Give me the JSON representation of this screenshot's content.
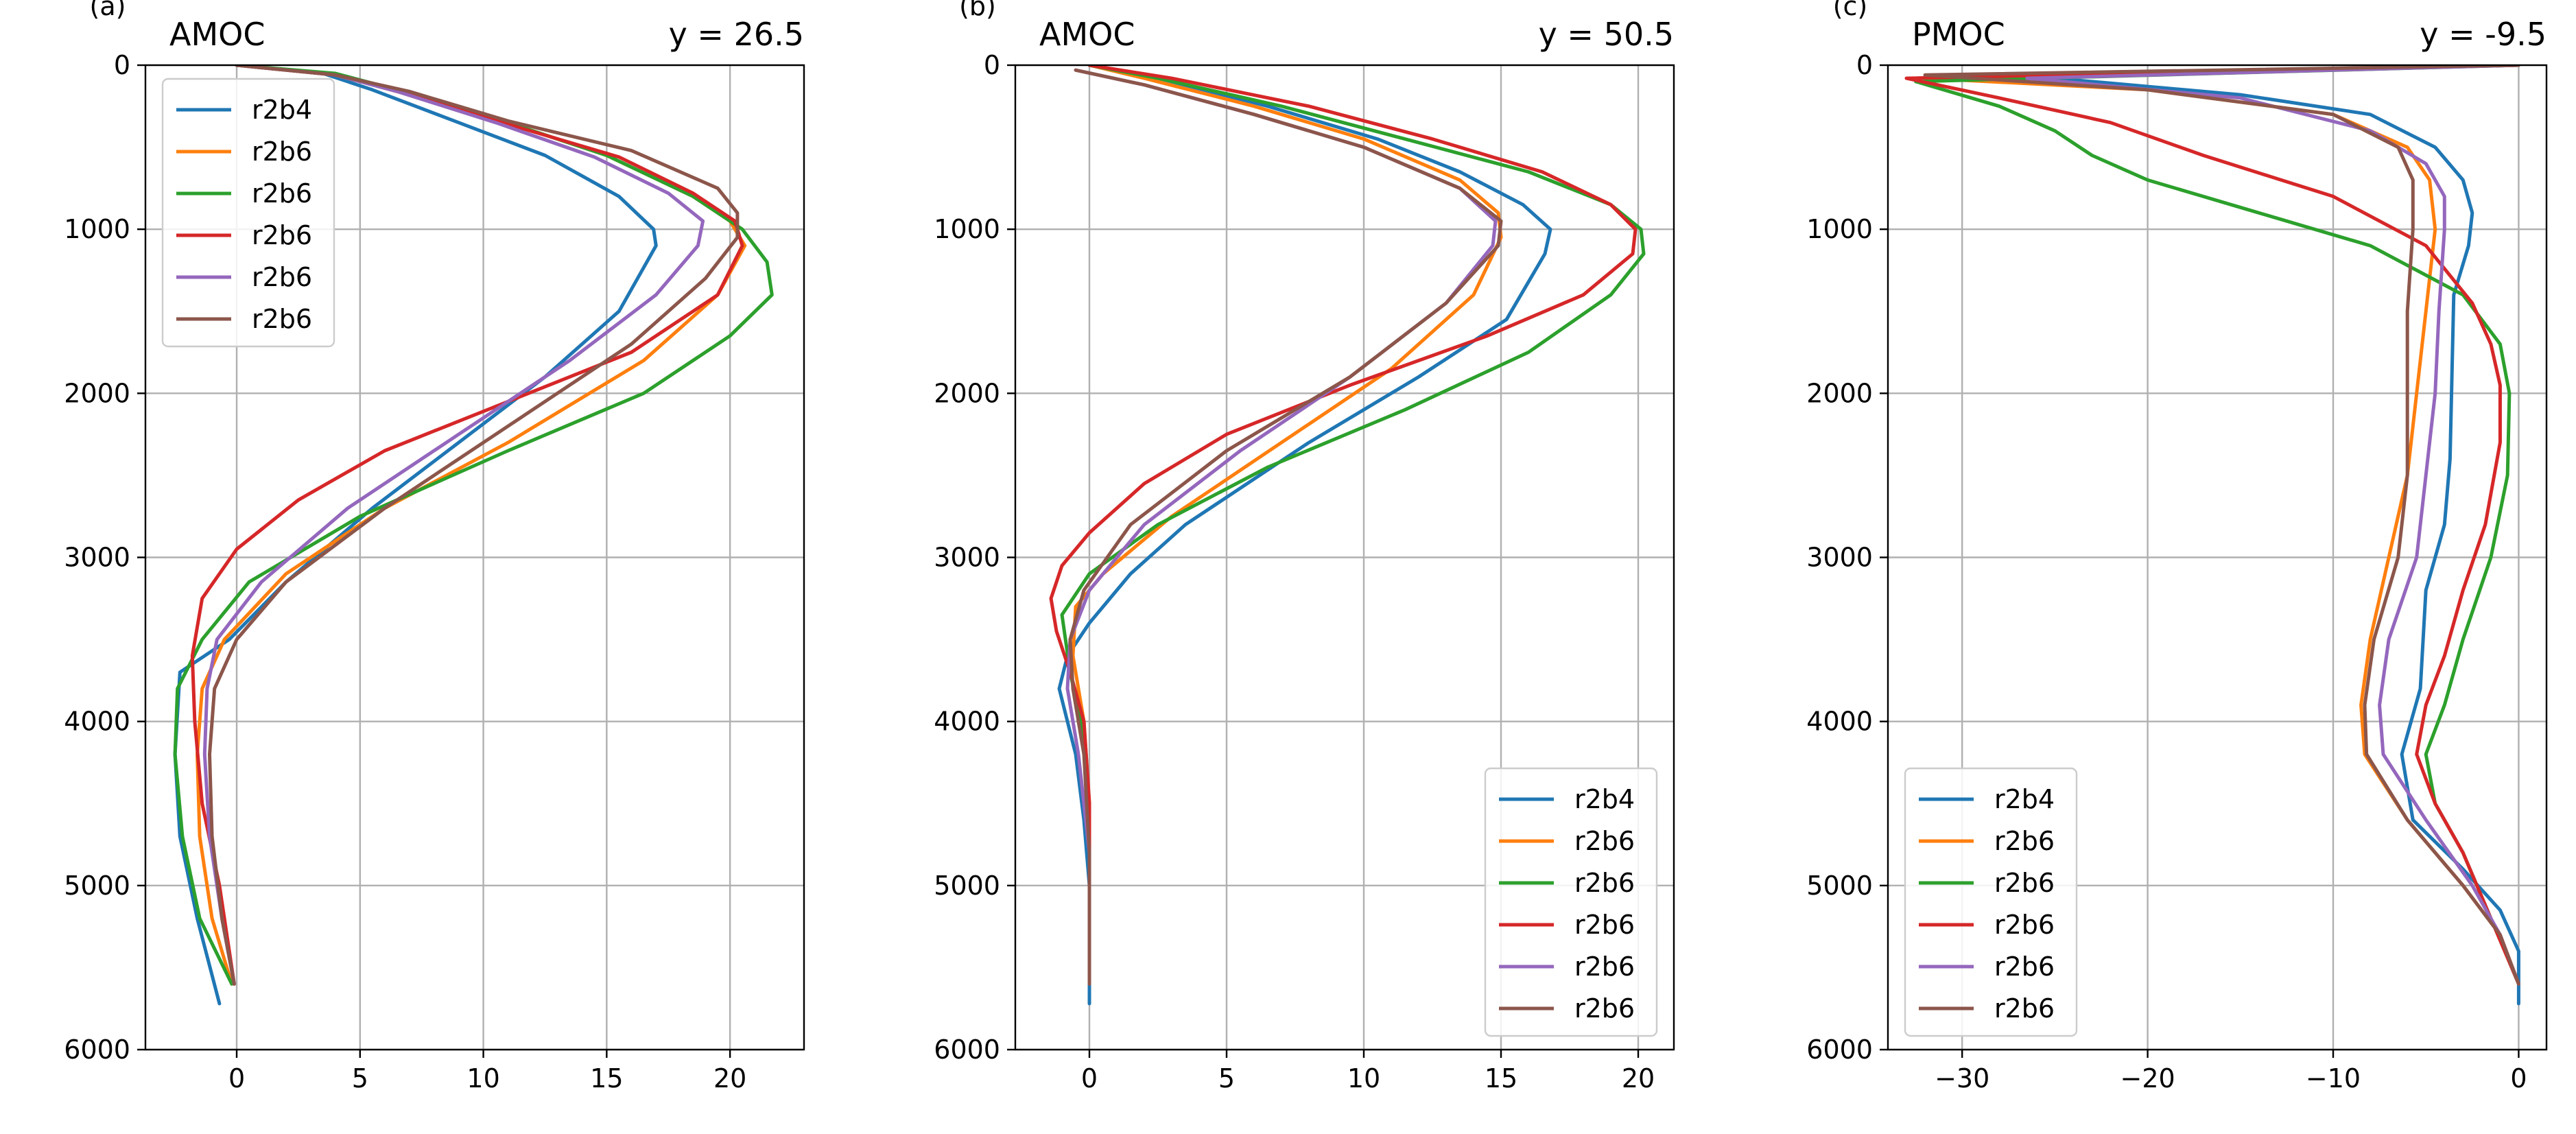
{
  "chart_data": [
    {
      "type": "line",
      "panel_letter": "(a)",
      "title": "AMOC",
      "title_right": "y = 26.5",
      "xlim": [
        -3.7,
        23
      ],
      "ylim": [
        6000,
        0
      ],
      "xticks": [
        0,
        5,
        10,
        15,
        20
      ],
      "xtick_labels": [
        "0",
        "5",
        "10",
        "15",
        "20"
      ],
      "yticks": [
        0,
        1000,
        2000,
        3000,
        4000,
        5000,
        6000
      ],
      "ytick_labels": [
        "0",
        "1000",
        "2000",
        "3000",
        "4000",
        "5000",
        "6000"
      ],
      "grid": true,
      "legend_position": "upper-left",
      "series": [
        {
          "name": "r2b4",
          "color": "#1f77b4",
          "x": [
            0,
            3.5,
            5.5,
            9,
            12.5,
            15.5,
            16.9,
            17,
            15.5,
            12.5,
            9,
            5.5,
            2,
            -0.3,
            -2.3,
            -2.5,
            -2.3,
            -1.6,
            -0.7
          ],
          "y": [
            0,
            50,
            150,
            350,
            550,
            800,
            1000,
            1100,
            1500,
            1900,
            2300,
            2700,
            3150,
            3500,
            3700,
            4200,
            4700,
            5200,
            5720
          ]
        },
        {
          "name": "r2b6",
          "color": "#ff7f0e",
          "x": [
            0,
            4,
            6.5,
            11,
            15,
            18.5,
            20,
            20.6,
            19.5,
            16.5,
            11,
            6,
            2,
            -0.5,
            -1.4,
            -1.6,
            -1.5,
            -1,
            -0.2
          ],
          "y": [
            0,
            60,
            160,
            350,
            550,
            800,
            950,
            1100,
            1400,
            1800,
            2300,
            2700,
            3100,
            3500,
            3800,
            4200,
            4700,
            5200,
            5600
          ]
        },
        {
          "name": "r2b6",
          "color": "#2ca02c",
          "x": [
            0,
            4,
            6.5,
            11,
            15,
            18.5,
            20.5,
            21.5,
            21.7,
            20,
            16.5,
            11,
            5,
            0.5,
            -1.4,
            -2.4,
            -2.5,
            -2.2,
            -1.5,
            -0.2
          ],
          "y": [
            0,
            50,
            150,
            350,
            550,
            800,
            1000,
            1200,
            1400,
            1650,
            2000,
            2350,
            2750,
            3150,
            3500,
            3800,
            4200,
            4700,
            5200,
            5600
          ]
        },
        {
          "name": "r2b6",
          "color": "#d62728",
          "x": [
            0,
            4,
            7,
            11,
            15.5,
            18.5,
            20.2,
            20.5,
            19.5,
            16,
            11,
            6,
            2.5,
            0,
            -1.4,
            -1.8,
            -1.7,
            -1.4,
            -0.7,
            -0.1
          ],
          "y": [
            0,
            60,
            170,
            360,
            560,
            780,
            950,
            1100,
            1400,
            1750,
            2050,
            2350,
            2650,
            2950,
            3250,
            3600,
            4000,
            4500,
            5000,
            5600
          ]
        },
        {
          "name": "r2b6",
          "color": "#9467bd",
          "x": [
            0,
            4,
            6.5,
            10.5,
            14.5,
            17.5,
            18.9,
            18.7,
            17,
            13.5,
            9,
            4.5,
            1,
            -0.8,
            -1.2,
            -1.3,
            -1.1,
            -0.6,
            -0.1
          ],
          "y": [
            0,
            60,
            160,
            350,
            560,
            780,
            950,
            1100,
            1400,
            1800,
            2250,
            2700,
            3150,
            3500,
            3800,
            4200,
            4700,
            5200,
            5600
          ]
        },
        {
          "name": "r2b6",
          "color": "#8c564b",
          "x": [
            0,
            4,
            7,
            11,
            16,
            19.5,
            20.3,
            20.3,
            19,
            16,
            11,
            6,
            2,
            0,
            -0.9,
            -1.1,
            -1,
            -0.6,
            -0.1
          ],
          "y": [
            0,
            60,
            160,
            340,
            520,
            750,
            900,
            1050,
            1300,
            1700,
            2200,
            2700,
            3150,
            3500,
            3800,
            4200,
            4700,
            5200,
            5600
          ]
        }
      ]
    },
    {
      "type": "line",
      "panel_letter": "(b)",
      "title": "AMOC",
      "title_right": "y = 50.5",
      "xlim": [
        -2.7,
        21.3
      ],
      "ylim": [
        6000,
        0
      ],
      "xticks": [
        0,
        5,
        10,
        15,
        20
      ],
      "xtick_labels": [
        "0",
        "5",
        "10",
        "15",
        "20"
      ],
      "yticks": [
        0,
        1000,
        2000,
        3000,
        4000,
        5000,
        6000
      ],
      "ytick_labels": [
        "0",
        "1000",
        "2000",
        "3000",
        "4000",
        "5000",
        "6000"
      ],
      "grid": true,
      "legend_position": "lower-right",
      "series": [
        {
          "name": "r2b4",
          "color": "#1f77b4",
          "x": [
            0,
            2.5,
            6.5,
            10.5,
            13.5,
            15.8,
            16.8,
            16.6,
            15.2,
            12,
            8,
            3.5,
            1.5,
            0,
            -0.8,
            -1.1,
            -0.5,
            -0.2,
            0,
            0,
            0
          ],
          "y": [
            0,
            80,
            250,
            450,
            650,
            850,
            1000,
            1150,
            1550,
            1900,
            2300,
            2800,
            3100,
            3400,
            3600,
            3800,
            4200,
            4600,
            5000,
            5400,
            5720
          ]
        },
        {
          "name": "r2b6",
          "color": "#ff7f0e",
          "x": [
            0,
            2,
            6,
            10,
            13.5,
            14.9,
            15,
            14,
            11,
            7,
            3,
            0.5,
            -0.5,
            -0.6,
            -0.2,
            0,
            0,
            0
          ],
          "y": [
            0,
            80,
            250,
            450,
            700,
            900,
            1050,
            1400,
            1850,
            2300,
            2750,
            3100,
            3300,
            3600,
            4000,
            4500,
            5000,
            5600
          ]
        },
        {
          "name": "r2b6",
          "color": "#2ca02c",
          "x": [
            0,
            2.5,
            7,
            11.5,
            16,
            19,
            20.1,
            20.2,
            19,
            16,
            11.5,
            6.5,
            2.5,
            0,
            -1,
            -0.7,
            -0.2,
            0,
            0
          ],
          "y": [
            0,
            80,
            250,
            450,
            650,
            850,
            1000,
            1150,
            1400,
            1750,
            2100,
            2450,
            2800,
            3100,
            3350,
            3700,
            4100,
            4600,
            5600
          ]
        },
        {
          "name": "r2b6",
          "color": "#d62728",
          "x": [
            0,
            3,
            8,
            12.5,
            16.5,
            19,
            19.9,
            19.8,
            18,
            14.5,
            9.5,
            5,
            2,
            0,
            -1,
            -1.4,
            -1.2,
            -0.7,
            -0.2,
            0,
            0
          ],
          "y": [
            0,
            80,
            250,
            450,
            650,
            850,
            1000,
            1150,
            1400,
            1650,
            1950,
            2250,
            2550,
            2850,
            3050,
            3250,
            3450,
            3700,
            4000,
            4500,
            5600
          ]
        },
        {
          "name": "r2b6",
          "color": "#9467bd",
          "x": [
            -0.5,
            2,
            6,
            10,
            13.5,
            14.8,
            14.7,
            13,
            9.5,
            5.5,
            2,
            0,
            -0.7,
            -0.8,
            -0.4,
            0,
            0
          ],
          "y": [
            30,
            120,
            300,
            500,
            750,
            950,
            1100,
            1450,
            1900,
            2350,
            2800,
            3200,
            3500,
            3800,
            4200,
            4800,
            5600
          ]
        },
        {
          "name": "r2b6",
          "color": "#8c564b",
          "x": [
            -0.5,
            2,
            6,
            10,
            13.5,
            15,
            14.9,
            13,
            9.5,
            5,
            1.5,
            -0.2,
            -0.7,
            -0.6,
            -0.2,
            0,
            0
          ],
          "y": [
            30,
            120,
            300,
            500,
            750,
            950,
            1100,
            1450,
            1900,
            2350,
            2800,
            3200,
            3500,
            3800,
            4200,
            4800,
            5600
          ]
        }
      ]
    },
    {
      "type": "line",
      "panel_letter": "(c)",
      "title": "PMOC",
      "title_right": "y = -9.5",
      "xlim": [
        -34,
        1.5
      ],
      "ylim": [
        6000,
        0
      ],
      "xticks": [
        -30,
        -20,
        -10,
        0
      ],
      "xtick_labels": [
        "−30",
        "−20",
        "−10",
        "0"
      ],
      "yticks": [
        0,
        1000,
        2000,
        3000,
        4000,
        5000,
        6000
      ],
      "ytick_labels": [
        "0",
        "1000",
        "2000",
        "3000",
        "4000",
        "5000",
        "6000"
      ],
      "grid": true,
      "legend_position": "lower-left",
      "series": [
        {
          "name": "r2b4",
          "color": "#1f77b4",
          "x": [
            0,
            -26,
            -22,
            -15,
            -8,
            -4.5,
            -3,
            -2.5,
            -2.7,
            -3.5,
            -3.6,
            -3.7,
            -4,
            -5,
            -5.3,
            -6.3,
            -5.7,
            -3,
            -1,
            0,
            0,
            0
          ],
          "y": [
            0,
            70,
            110,
            180,
            300,
            500,
            700,
            900,
            1100,
            1400,
            1900,
            2400,
            2800,
            3200,
            3800,
            4200,
            4600,
            4900,
            5150,
            5400,
            5600,
            5720
          ]
        },
        {
          "name": "r2b6",
          "color": "#ff7f0e",
          "x": [
            0,
            -32,
            -20,
            -10,
            -6,
            -4.8,
            -4.5,
            -5,
            -5.5,
            -6,
            -7,
            -8,
            -8.5,
            -8.3,
            -6,
            -3,
            -1,
            0
          ],
          "y": [
            0,
            80,
            150,
            300,
            500,
            700,
            1000,
            1500,
            2000,
            2500,
            3000,
            3500,
            3900,
            4200,
            4600,
            5000,
            5300,
            5600
          ]
        },
        {
          "name": "r2b6",
          "color": "#2ca02c",
          "x": [
            0,
            -32.5,
            -28,
            -25,
            -23,
            -20,
            -14,
            -8,
            -3,
            -1,
            -0.5,
            -0.6,
            -1.5,
            -3,
            -4,
            -5,
            -4.5,
            -3,
            -1.5,
            0
          ],
          "y": [
            0,
            100,
            250,
            400,
            550,
            700,
            900,
            1100,
            1400,
            1700,
            2000,
            2500,
            3000,
            3500,
            3900,
            4200,
            4500,
            4800,
            5200,
            5600
          ]
        },
        {
          "name": "r2b6",
          "color": "#d62728",
          "x": [
            0,
            -33,
            -28,
            -22,
            -17,
            -10,
            -5,
            -2.5,
            -1.5,
            -1,
            -1,
            -1.8,
            -3,
            -4,
            -5,
            -5.5,
            -4.5,
            -3,
            -1.5,
            0
          ],
          "y": [
            0,
            80,
            200,
            350,
            550,
            800,
            1100,
            1450,
            1700,
            1950,
            2300,
            2800,
            3200,
            3600,
            3900,
            4200,
            4500,
            4800,
            5200,
            5600
          ]
        },
        {
          "name": "r2b6",
          "color": "#9467bd",
          "x": [
            0,
            -26.5,
            -15,
            -8,
            -5,
            -4,
            -4,
            -4.3,
            -4.5,
            -5,
            -5.5,
            -7,
            -7.5,
            -7.3,
            -5,
            -2.5,
            -1,
            0
          ],
          "y": [
            0,
            80,
            200,
            400,
            600,
            800,
            1000,
            1500,
            2000,
            2500,
            3000,
            3500,
            3900,
            4200,
            4600,
            5000,
            5300,
            5600
          ]
        },
        {
          "name": "r2b6",
          "color": "#8c564b",
          "x": [
            0,
            -32,
            -20,
            -10,
            -6.5,
            -5.7,
            -5.7,
            -6,
            -6,
            -6,
            -6.5,
            -7.8,
            -8.3,
            -8.2,
            -6,
            -3,
            -1,
            0
          ],
          "y": [
            0,
            60,
            150,
            300,
            500,
            700,
            1000,
            1500,
            2000,
            2500,
            3000,
            3500,
            3900,
            4200,
            4600,
            5000,
            5300,
            5600
          ]
        }
      ]
    }
  ]
}
